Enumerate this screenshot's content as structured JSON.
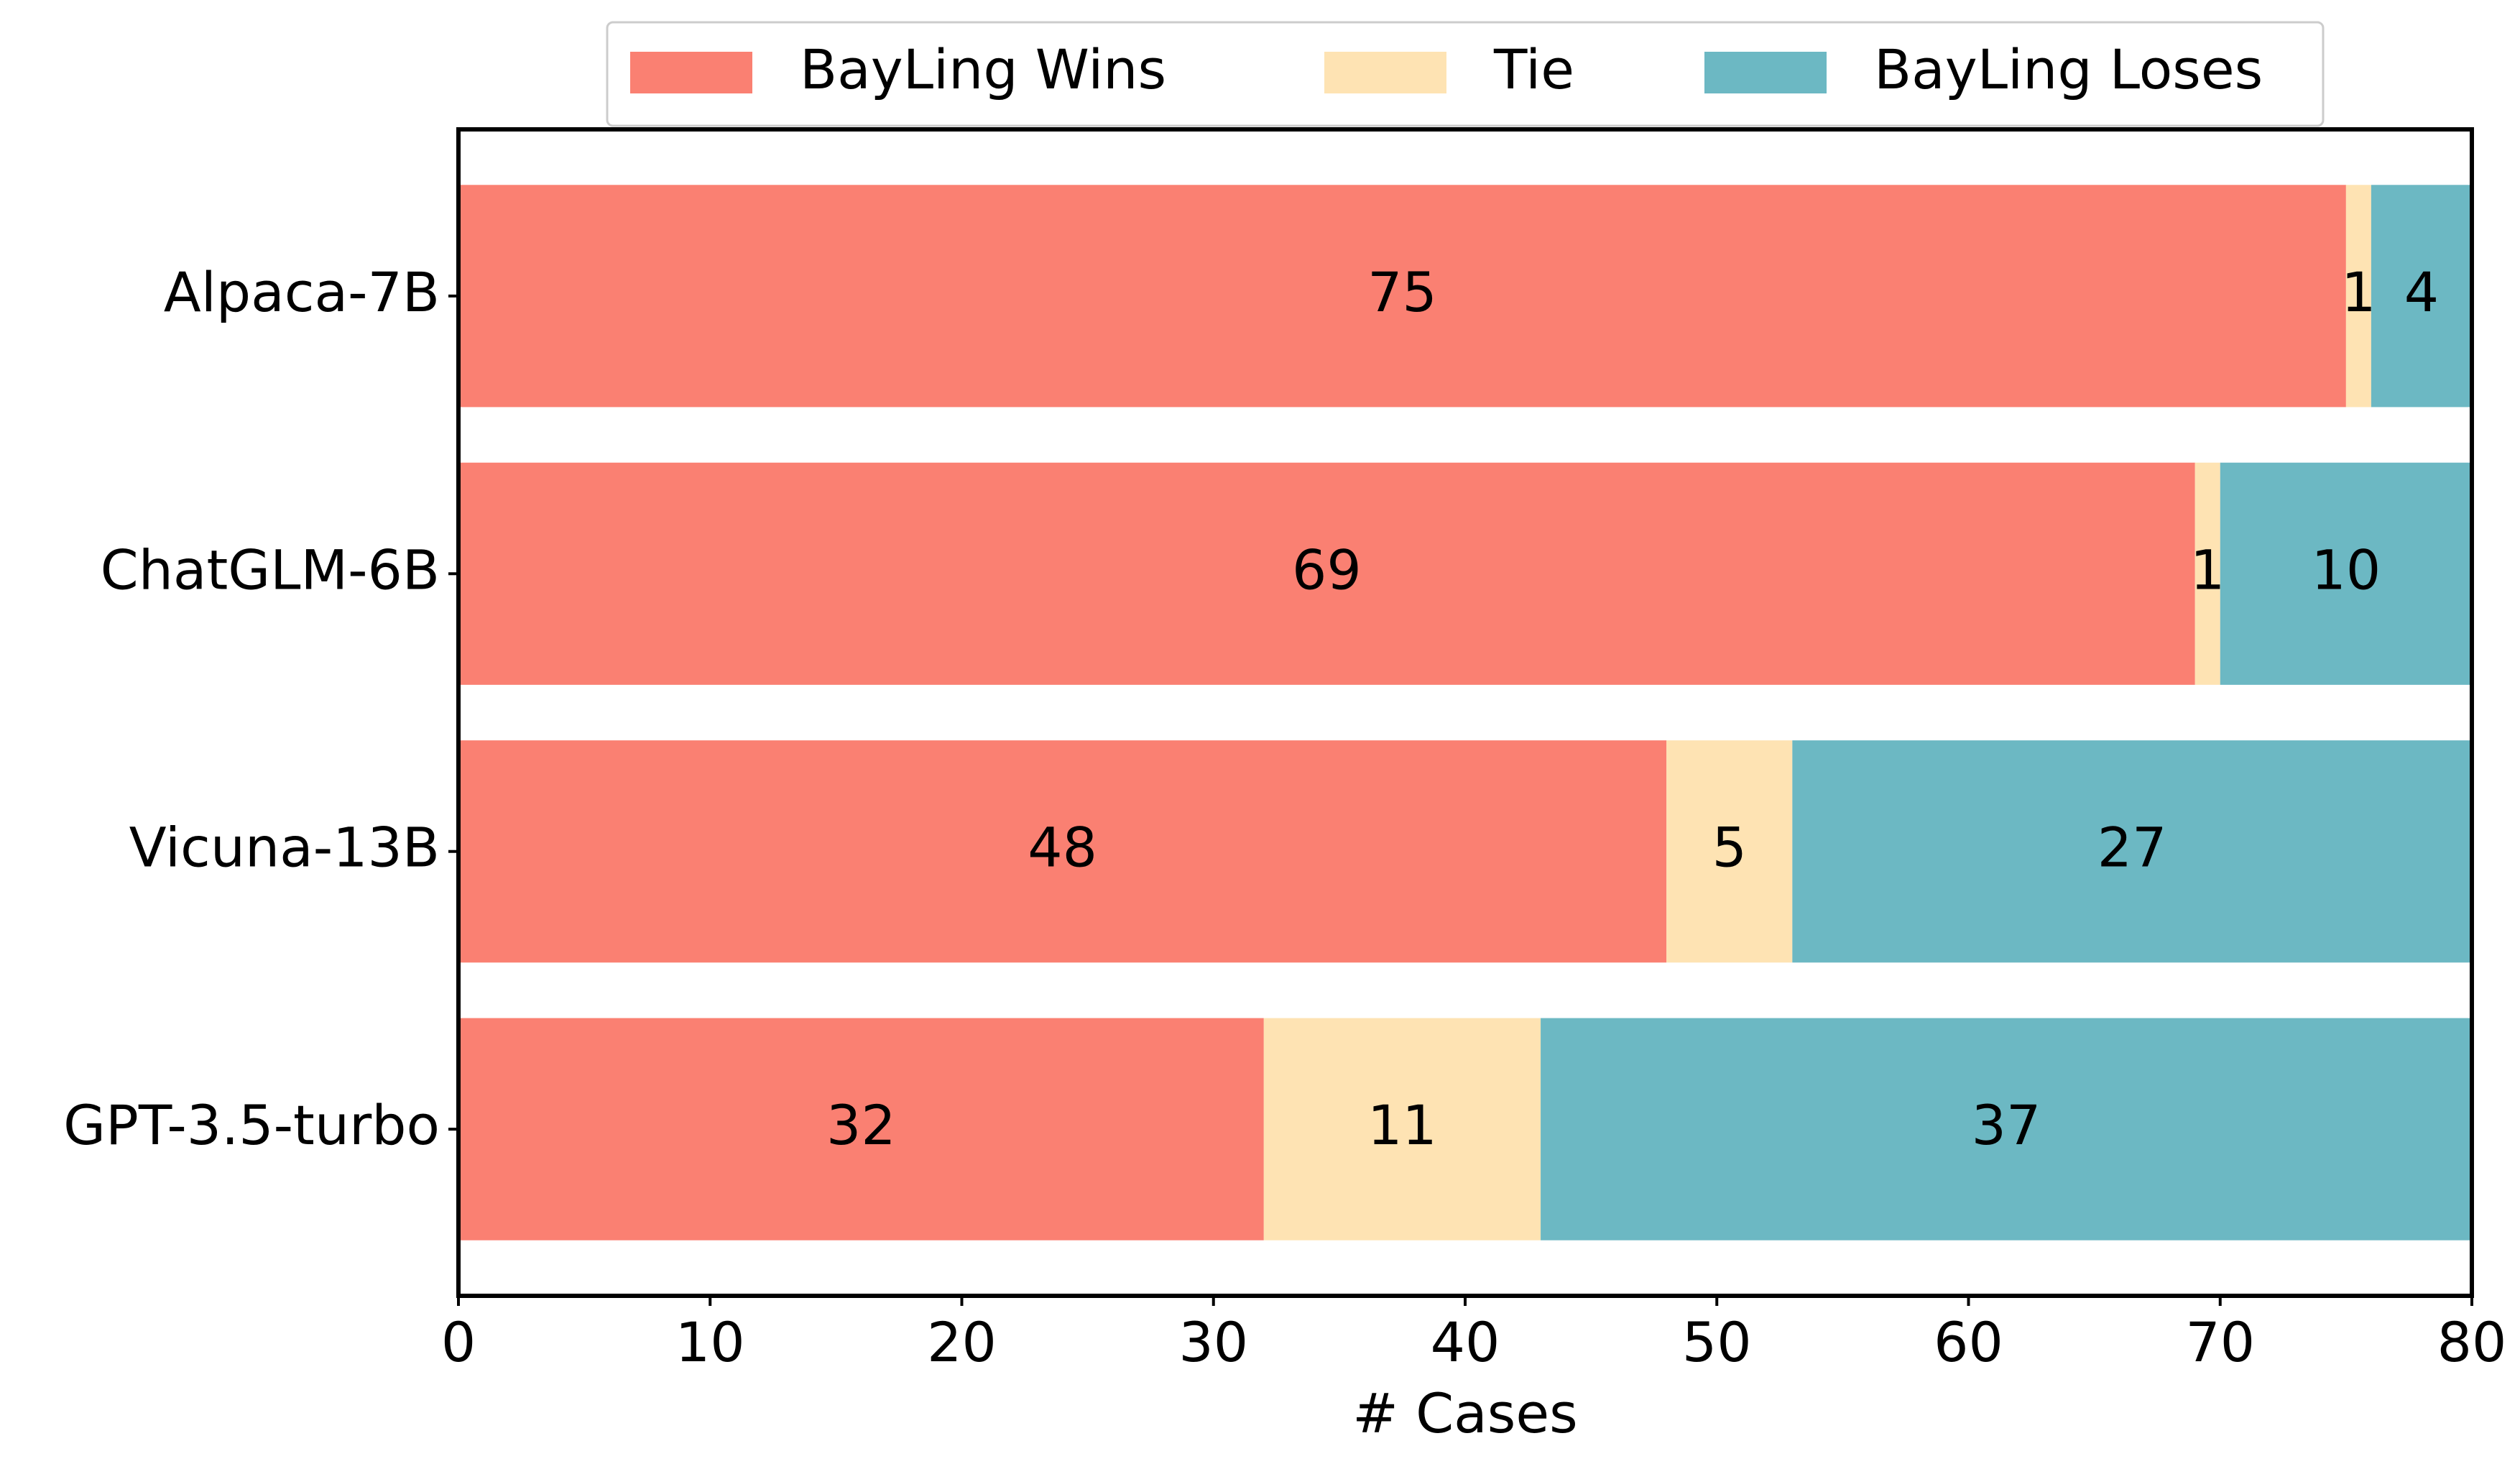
{
  "chart_data": {
    "type": "stacked-barh",
    "categories": [
      "Alpaca-7B",
      "ChatGLM-6B",
      "Vicuna-13B",
      "GPT-3.5-turbo"
    ],
    "series": [
      {
        "name": "BayLing Wins",
        "color": "#fa8072",
        "values": [
          75,
          69,
          48,
          32
        ]
      },
      {
        "name": "Tie",
        "color": "#fee3b3",
        "values": [
          1,
          1,
          5,
          11
        ]
      },
      {
        "name": "BayLing Loses",
        "color": "#6cb8c3",
        "values": [
          4,
          10,
          27,
          37
        ]
      }
    ],
    "xlabel": "# Cases",
    "xlim": [
      0,
      80
    ],
    "xticks": [
      0,
      10,
      20,
      30,
      40,
      50,
      60,
      70,
      80
    ],
    "legend": "top"
  }
}
